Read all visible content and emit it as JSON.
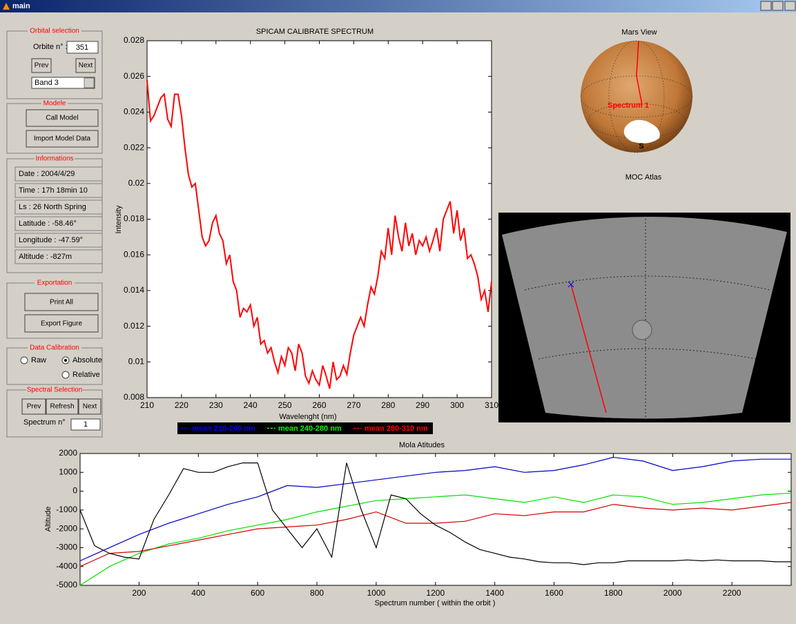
{
  "window": {
    "title": "main"
  },
  "orbital": {
    "title": "Orbital selection",
    "label": "Orbite n° :",
    "value": "351",
    "prev": "Prev",
    "next": "Next",
    "band": "Band 3"
  },
  "modele": {
    "title": "Modele",
    "buttons": [
      "Call Model",
      "Import Model Data"
    ]
  },
  "informations": {
    "title": "Informations",
    "rows": [
      "Date : 2004/4/29",
      "Time : 17h 18min 10",
      "Ls : 26 North Spring",
      "Latitude : -58.46°",
      "Longitude : -47.59°",
      "Altitude : -827m"
    ]
  },
  "exportation": {
    "title": "Exportation",
    "buttons": [
      "Print All",
      "Export Figure"
    ]
  },
  "calibration": {
    "title": "Data Calibration",
    "options": [
      "Raw",
      "Absolute",
      "Relative"
    ],
    "selected": 1
  },
  "spectral": {
    "title": "Spectral Selection",
    "buttons": [
      "Prev",
      "Refresh",
      "Next"
    ],
    "label": "Spectrum n°",
    "value": "1"
  },
  "spectrum": {
    "type": "line",
    "title": "SPICAM CALIBRATE SPECTRUM",
    "xlabel": "Wavelenght (nm)",
    "ylabel": "Intensity",
    "color": "#ff0000",
    "xlim": [
      210,
      310
    ],
    "ylim": [
      0.008,
      0.028
    ],
    "xticks": [
      210,
      220,
      230,
      240,
      250,
      260,
      270,
      280,
      290,
      300,
      310
    ],
    "yticks": [
      0.008,
      0.01,
      0.012,
      0.014,
      0.016,
      0.018,
      0.02,
      0.022,
      0.024,
      0.026,
      0.028
    ],
    "x": [
      210,
      211,
      212,
      213,
      214,
      215,
      216,
      217,
      218,
      219,
      220,
      221,
      222,
      223,
      224,
      225,
      226,
      227,
      228,
      229,
      230,
      231,
      232,
      233,
      234,
      235,
      236,
      237,
      238,
      239,
      240,
      241,
      242,
      243,
      244,
      245,
      246,
      247,
      248,
      249,
      250,
      251,
      252,
      253,
      254,
      255,
      256,
      257,
      258,
      259,
      260,
      261,
      262,
      263,
      264,
      265,
      266,
      267,
      268,
      269,
      270,
      271,
      272,
      273,
      274,
      275,
      276,
      277,
      278,
      279,
      280,
      281,
      282,
      283,
      284,
      285,
      286,
      287,
      288,
      289,
      290,
      291,
      292,
      293,
      294,
      295,
      296,
      297,
      298,
      299,
      300,
      301,
      302,
      303,
      304,
      305,
      306,
      307,
      308,
      309,
      310
    ],
    "values": [
      0.0258,
      0.0235,
      0.0238,
      0.0243,
      0.0248,
      0.025,
      0.0236,
      0.0232,
      0.025,
      0.025,
      0.0238,
      0.022,
      0.0205,
      0.0198,
      0.02,
      0.0185,
      0.017,
      0.0165,
      0.0168,
      0.0178,
      0.0182,
      0.0172,
      0.0168,
      0.0155,
      0.016,
      0.0145,
      0.014,
      0.0125,
      0.013,
      0.0128,
      0.0132,
      0.012,
      0.0125,
      0.011,
      0.0112,
      0.0105,
      0.0108,
      0.01,
      0.0094,
      0.0103,
      0.0098,
      0.0108,
      0.0105,
      0.0095,
      0.011,
      0.0105,
      0.0092,
      0.0088,
      0.0095,
      0.009,
      0.0087,
      0.0098,
      0.0092,
      0.0085,
      0.01,
      0.009,
      0.0092,
      0.0098,
      0.0093,
      0.0105,
      0.0115,
      0.012,
      0.0125,
      0.012,
      0.0132,
      0.0142,
      0.0138,
      0.0148,
      0.0162,
      0.0158,
      0.0175,
      0.016,
      0.0182,
      0.017,
      0.0162,
      0.0178,
      0.0165,
      0.0172,
      0.016,
      0.0168,
      0.0165,
      0.017,
      0.0162,
      0.0168,
      0.0175,
      0.0162,
      0.018,
      0.0185,
      0.019,
      0.0172,
      0.0185,
      0.0168,
      0.0175,
      0.0158,
      0.016,
      0.0155,
      0.0148,
      0.0135,
      0.014,
      0.0128,
      0.0145
    ]
  },
  "legend": [
    {
      "name": "mean 210-240 nm",
      "color": "#0000ff"
    },
    {
      "name": "mean 240-280 nm",
      "color": "#00ff00"
    },
    {
      "name": "mean 280-310 nm",
      "color": "#ff0000"
    }
  ],
  "mars": {
    "title": "Mars View",
    "annotation": "Spectrum 1",
    "pole": "S"
  },
  "moc": {
    "title": "MOC Atlas"
  },
  "mola": {
    "type": "line",
    "title": "Mola Atitudes",
    "xlabel": "Spectrum number ( within the orbit )",
    "ylabel": "Altitude",
    "xlim": [
      1,
      2400
    ],
    "ylim": [
      -5000,
      2000
    ],
    "xticks": [
      200,
      400,
      600,
      800,
      1000,
      1200,
      1400,
      1600,
      1800,
      2000,
      2200
    ],
    "yticks": [
      -5000,
      -4000,
      -3000,
      -2000,
      -1000,
      0,
      1000,
      2000
    ],
    "series": [
      {
        "color": "#0000c0",
        "x": [
          1,
          100,
          200,
          300,
          400,
          500,
          600,
          700,
          800,
          900,
          1000,
          1100,
          1200,
          1300,
          1400,
          1500,
          1600,
          1700,
          1800,
          1900,
          2000,
          2100,
          2200,
          2300,
          2400
        ],
        "values": [
          -3700,
          -3000,
          -2300,
          -1700,
          -1200,
          -700,
          -300,
          300,
          200,
          400,
          600,
          800,
          1000,
          1100,
          1300,
          1000,
          1100,
          1400,
          1800,
          1600,
          1100,
          1300,
          1600,
          1700,
          1700
        ]
      },
      {
        "color": "#00e000",
        "x": [
          1,
          100,
          200,
          300,
          400,
          500,
          600,
          700,
          800,
          900,
          1000,
          1100,
          1200,
          1300,
          1400,
          1500,
          1600,
          1700,
          1800,
          1900,
          2000,
          2100,
          2200,
          2300,
          2400
        ],
        "values": [
          -5000,
          -4000,
          -3300,
          -2800,
          -2500,
          -2100,
          -1800,
          -1500,
          -1100,
          -800,
          -500,
          -400,
          -300,
          -200,
          -400,
          -600,
          -300,
          -600,
          -200,
          -300,
          -700,
          -600,
          -400,
          -200,
          -100
        ]
      },
      {
        "color": "#d00000",
        "x": [
          1,
          100,
          200,
          300,
          400,
          500,
          600,
          700,
          800,
          900,
          1000,
          1100,
          1200,
          1300,
          1400,
          1500,
          1600,
          1700,
          1800,
          1900,
          2000,
          2100,
          2200,
          2300,
          2400
        ],
        "values": [
          -4000,
          -3300,
          -3200,
          -2900,
          -2600,
          -2300,
          -2000,
          -1900,
          -1800,
          -1500,
          -1100,
          -1700,
          -1700,
          -1600,
          -1200,
          -1300,
          -1100,
          -1100,
          -700,
          -900,
          -1000,
          -900,
          -1000,
          -800,
          -600
        ]
      },
      {
        "color": "#000000",
        "x": [
          1,
          50,
          100,
          150,
          200,
          250,
          300,
          350,
          400,
          450,
          500,
          550,
          600,
          650,
          700,
          750,
          800,
          850,
          900,
          950,
          1000,
          1050,
          1100,
          1150,
          1200,
          1250,
          1300,
          1350,
          1400,
          1450,
          1500,
          1550,
          1600,
          1650,
          1700,
          1750,
          1800,
          1850,
          1900,
          1950,
          2000,
          2050,
          2100,
          2150,
          2200,
          2250,
          2300,
          2350,
          2400
        ],
        "values": [
          -1000,
          -2900,
          -3300,
          -3500,
          -3600,
          -1500,
          -200,
          1200,
          1000,
          1000,
          1300,
          1500,
          1500,
          -1000,
          -2000,
          -3000,
          -2000,
          -3500,
          1500,
          -1000,
          -3000,
          -200,
          -400,
          -1200,
          -1800,
          -2200,
          -2700,
          -3100,
          -3300,
          -3500,
          -3600,
          -3750,
          -3800,
          -3800,
          -3900,
          -3800,
          -3800,
          -3700,
          -3700,
          -3700,
          -3700,
          -3650,
          -3700,
          -3650,
          -3700,
          -3700,
          -3700,
          -3750,
          -3750
        ]
      }
    ]
  }
}
